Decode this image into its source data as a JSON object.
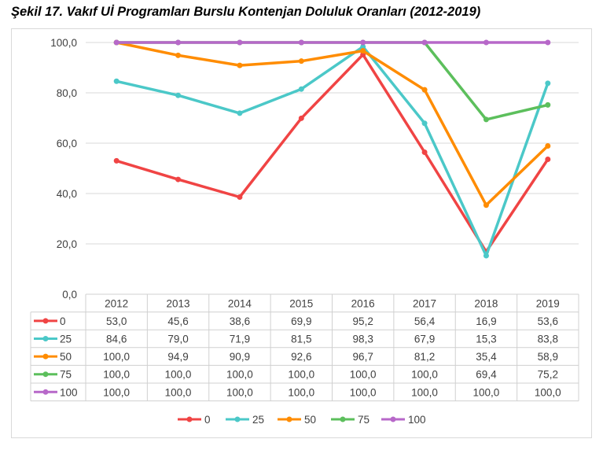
{
  "caption": "Şekil 17. Vakıf Uİ Programları Burslu Kontenjan Doluluk Oranları (2012-2019)",
  "chart_data": {
    "type": "line",
    "title": "Şekil 17. Vakıf Uİ Programları Burslu Kontenjan Doluluk Oranları (2012-2019)",
    "xlabel": "",
    "ylabel": "",
    "categories": [
      "2012",
      "2013",
      "2014",
      "2015",
      "2016",
      "2017",
      "2018",
      "2019"
    ],
    "ylim": [
      0,
      100
    ],
    "yticks": [
      "0,0",
      "20,0",
      "40,0",
      "60,0",
      "80,0",
      "100,0"
    ],
    "grid": true,
    "legend_position": "bottom",
    "data_table": true,
    "series": [
      {
        "name": "0",
        "color": "#f04444",
        "values": [
          53.0,
          45.6,
          38.6,
          69.9,
          95.2,
          56.4,
          16.9,
          53.6
        ],
        "labels": [
          "53,0",
          "45,6",
          "38,6",
          "69,9",
          "95,2",
          "56,4",
          "16,9",
          "53,6"
        ]
      },
      {
        "name": "25",
        "color": "#4bc8c8",
        "values": [
          84.6,
          79.0,
          71.9,
          81.5,
          98.3,
          67.9,
          15.3,
          83.8
        ],
        "labels": [
          "84,6",
          "79,0",
          "71,9",
          "81,5",
          "98,3",
          "67,9",
          "15,3",
          "83,8"
        ]
      },
      {
        "name": "50",
        "color": "#ff8c00",
        "values": [
          100.0,
          94.9,
          90.9,
          92.6,
          96.7,
          81.2,
          35.4,
          58.9
        ],
        "labels": [
          "100,0",
          "94,9",
          "90,9",
          "92,6",
          "96,7",
          "81,2",
          "35,4",
          "58,9"
        ]
      },
      {
        "name": "75",
        "color": "#5cbf5c",
        "values": [
          100.0,
          100.0,
          100.0,
          100.0,
          100.0,
          100.0,
          69.4,
          75.2
        ],
        "labels": [
          "100,0",
          "100,0",
          "100,0",
          "100,0",
          "100,0",
          "100,0",
          "69,4",
          "75,2"
        ]
      },
      {
        "name": "100",
        "color": "#b768c9",
        "values": [
          100.0,
          100.0,
          100.0,
          100.0,
          100.0,
          100.0,
          100.0,
          100.0
        ],
        "labels": [
          "100,0",
          "100,0",
          "100,0",
          "100,0",
          "100,0",
          "100,0",
          "100,0",
          "100,0"
        ]
      }
    ]
  }
}
